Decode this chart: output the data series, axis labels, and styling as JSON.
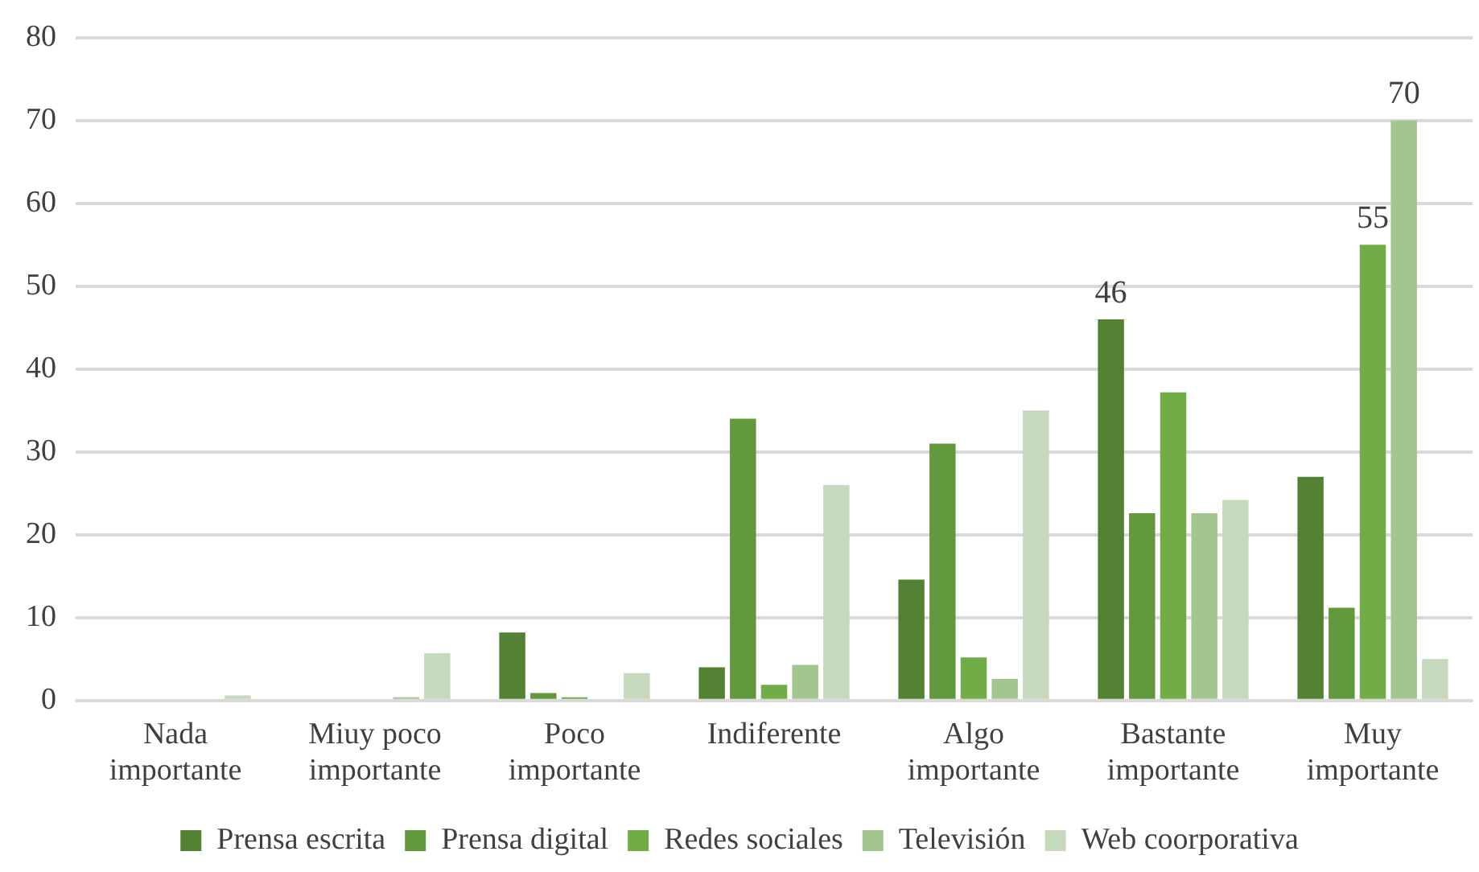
{
  "chart_data": {
    "type": "bar",
    "categories": [
      "Nada importante",
      "Miuy poco importante",
      "Poco importante",
      "Indiferente",
      "Algo importante",
      "Bastante importante",
      "Muy importante"
    ],
    "series": [
      {
        "name": "Prensa escrita",
        "color": "#548235",
        "values": [
          0,
          0,
          8.2,
          4,
          14.6,
          46,
          27
        ],
        "value_labels": [
          null,
          null,
          null,
          null,
          null,
          "46",
          null
        ]
      },
      {
        "name": "Prensa digital",
        "color": "#63993d",
        "values": [
          0,
          0,
          0.9,
          34,
          31,
          22.6,
          11.2
        ]
      },
      {
        "name": "Redes sociales",
        "color": "#70ad47",
        "values": [
          0,
          0,
          0.4,
          1.9,
          5.2,
          37.2,
          55
        ],
        "value_labels": [
          null,
          null,
          null,
          null,
          null,
          null,
          "55"
        ]
      },
      {
        "name": "Televisión",
        "color": "#a3c68f",
        "values": [
          0,
          0.4,
          0,
          4.3,
          2.6,
          22.6,
          70
        ],
        "value_labels": [
          null,
          null,
          null,
          null,
          null,
          null,
          "70"
        ]
      },
      {
        "name": "Web coorporativa",
        "color": "#c5d9bd",
        "values": [
          0.6,
          5.7,
          3.3,
          26,
          35,
          24.2,
          5
        ]
      }
    ],
    "ylim": [
      0,
      80
    ],
    "yticks": [
      0,
      10,
      20,
      30,
      40,
      50,
      60,
      70,
      80
    ],
    "grid": "y",
    "legend": "bottom"
  }
}
